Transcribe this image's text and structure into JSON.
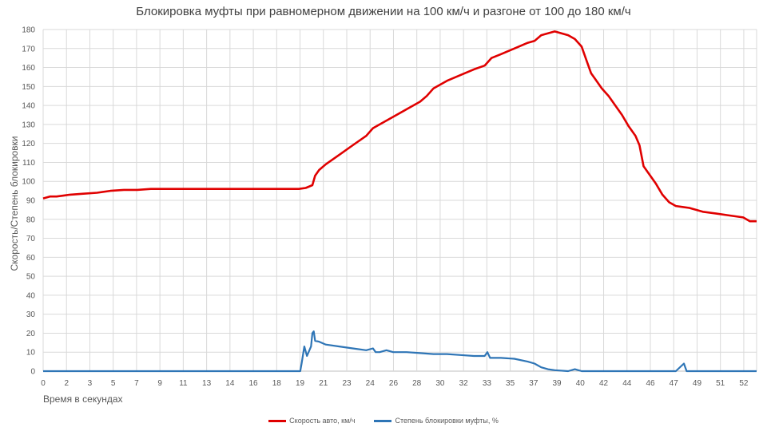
{
  "chart_data": {
    "type": "line",
    "title": "Блокировка муфты при равномерном движении на 100 км/ч и разгоне от 100 до 180 км/ч",
    "xlabel": "Время в секундах",
    "ylabel": "Скорость/Степень блокировки",
    "xlim": [
      0,
      53
    ],
    "ylim": [
      0,
      180
    ],
    "y_ticks": [
      0,
      10,
      20,
      30,
      40,
      50,
      60,
      70,
      80,
      90,
      100,
      110,
      120,
      130,
      140,
      150,
      160,
      170,
      180
    ],
    "x_tick_labels": [
      "0",
      "2",
      "3",
      "5",
      "7",
      "9",
      "11",
      "13",
      "14",
      "16",
      "18",
      "19",
      "21",
      "23",
      "24",
      "26",
      "28",
      "30",
      "32",
      "33",
      "35",
      "37",
      "39",
      "40",
      "42",
      "44",
      "46",
      "47",
      "49",
      "51",
      "52"
    ],
    "grid": true,
    "legend_position": "bottom",
    "series": [
      {
        "name": "Скорость авто, км/ч",
        "color": "#e00000",
        "points": [
          [
            0,
            91
          ],
          [
            0.5,
            92
          ],
          [
            1,
            92
          ],
          [
            1.5,
            92.5
          ],
          [
            2,
            93
          ],
          [
            3,
            93.5
          ],
          [
            4,
            94
          ],
          [
            5,
            95
          ],
          [
            6,
            95.5
          ],
          [
            7,
            95.5
          ],
          [
            8,
            96
          ],
          [
            10,
            96
          ],
          [
            12,
            96
          ],
          [
            14,
            96
          ],
          [
            16,
            96
          ],
          [
            17,
            96
          ],
          [
            18,
            96
          ],
          [
            19,
            96
          ],
          [
            19.5,
            96.5
          ],
          [
            20,
            98
          ],
          [
            20.2,
            103
          ],
          [
            20.5,
            106
          ],
          [
            21,
            109
          ],
          [
            22,
            114
          ],
          [
            23,
            119
          ],
          [
            24,
            124
          ],
          [
            24.5,
            128
          ],
          [
            25,
            130
          ],
          [
            26,
            134
          ],
          [
            27,
            138
          ],
          [
            28,
            142
          ],
          [
            28.5,
            145
          ],
          [
            29,
            149
          ],
          [
            30,
            153
          ],
          [
            31,
            156
          ],
          [
            32,
            159
          ],
          [
            32.8,
            161
          ],
          [
            33.3,
            165
          ],
          [
            34,
            167
          ],
          [
            35,
            170
          ],
          [
            36,
            173
          ],
          [
            36.5,
            174
          ],
          [
            37,
            177
          ],
          [
            37.5,
            178
          ],
          [
            38,
            179
          ],
          [
            38.5,
            178
          ],
          [
            39,
            177
          ],
          [
            39.5,
            175
          ],
          [
            40,
            171
          ],
          [
            40.4,
            163
          ],
          [
            40.7,
            157
          ],
          [
            41,
            154
          ],
          [
            41.5,
            149
          ],
          [
            42,
            145
          ],
          [
            42.5,
            140
          ],
          [
            43,
            135
          ],
          [
            43.5,
            129
          ],
          [
            44,
            124
          ],
          [
            44.3,
            119
          ],
          [
            44.6,
            108
          ],
          [
            45,
            104
          ],
          [
            45.5,
            99
          ],
          [
            46,
            93
          ],
          [
            46.5,
            89
          ],
          [
            47,
            87
          ],
          [
            47.5,
            86.5
          ],
          [
            48,
            86
          ],
          [
            48.5,
            85
          ],
          [
            49,
            84
          ],
          [
            50,
            83
          ],
          [
            51,
            82
          ],
          [
            52,
            81
          ],
          [
            52.5,
            79
          ],
          [
            53,
            79
          ]
        ]
      },
      {
        "name": "Степень блокировки муфты, %",
        "color": "#2e75b6",
        "points": [
          [
            0,
            0
          ],
          [
            19.1,
            0
          ],
          [
            19.2,
            4
          ],
          [
            19.4,
            13
          ],
          [
            19.6,
            8
          ],
          [
            19.9,
            13
          ],
          [
            20,
            20
          ],
          [
            20.1,
            21
          ],
          [
            20.2,
            16
          ],
          [
            20.5,
            15.5
          ],
          [
            21,
            14
          ],
          [
            22,
            13
          ],
          [
            23,
            12
          ],
          [
            24,
            11
          ],
          [
            24.5,
            12
          ],
          [
            24.7,
            10
          ],
          [
            25,
            10
          ],
          [
            25.5,
            11
          ],
          [
            26,
            10
          ],
          [
            27,
            10
          ],
          [
            28,
            9.5
          ],
          [
            29,
            9
          ],
          [
            30,
            9
          ],
          [
            31,
            8.5
          ],
          [
            32,
            8
          ],
          [
            32.8,
            8
          ],
          [
            33,
            10
          ],
          [
            33.2,
            7
          ],
          [
            34,
            7
          ],
          [
            35,
            6.5
          ],
          [
            36,
            5
          ],
          [
            36.5,
            4
          ],
          [
            37,
            2
          ],
          [
            37.5,
            1
          ],
          [
            38,
            0.5
          ],
          [
            39,
            0
          ],
          [
            39.5,
            1
          ],
          [
            40,
            0
          ],
          [
            47,
            0
          ],
          [
            47.6,
            4
          ],
          [
            47.8,
            0
          ],
          [
            53,
            0
          ]
        ]
      }
    ]
  }
}
